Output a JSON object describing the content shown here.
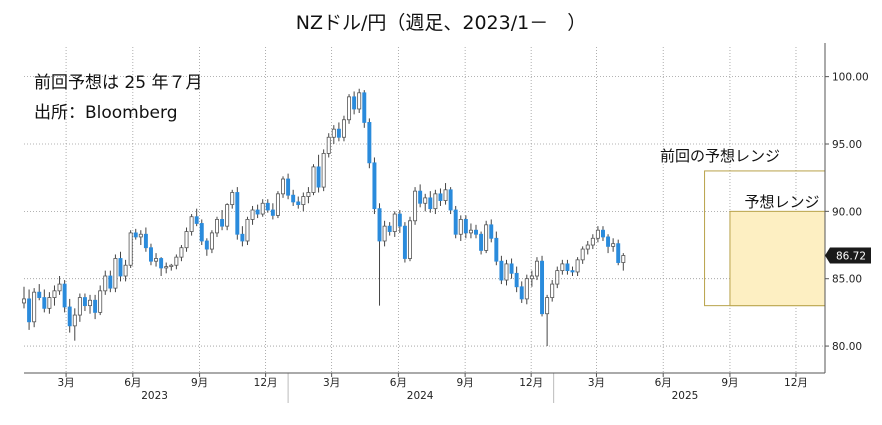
{
  "chart_data": {
    "type": "candlestick",
    "title": "NZドル/円（週足、2023/1－　）",
    "annotations": {
      "note_forecast": "前回予想は 25 年７月",
      "note_source": "出所：Bloomberg"
    },
    "y_ticks": [
      "80.00",
      "85.00",
      "90.00",
      "95.00",
      "100.00"
    ],
    "ylim": [
      78.0,
      102.2
    ],
    "grid": true,
    "x_ticks": [
      {
        "label": "3月",
        "date": "2023-03-01"
      },
      {
        "label": "6月",
        "date": "2023-06-01"
      },
      {
        "label": "9月",
        "date": "2023-09-01"
      },
      {
        "label": "12月",
        "date": "2023-12-01"
      },
      {
        "label": "3月",
        "date": "2024-03-01"
      },
      {
        "label": "6月",
        "date": "2024-06-01"
      },
      {
        "label": "9月",
        "date": "2024-09-01"
      },
      {
        "label": "12月",
        "date": "2024-12-01"
      },
      {
        "label": "3月",
        "date": "2025-03-01"
      },
      {
        "label": "6月",
        "date": "2025-06-01"
      },
      {
        "label": "9月",
        "date": "2025-09-01"
      },
      {
        "label": "12月",
        "date": "2025-12-01"
      }
    ],
    "year_labels": [
      {
        "label": "2023",
        "date": "2023-07-01"
      },
      {
        "label": "2024",
        "date": "2024-07-01"
      },
      {
        "label": "2025",
        "date": "2025-07-01"
      }
    ],
    "xlim": [
      "2023-01-02",
      "2026-01-10"
    ],
    "last_price": "86.72",
    "ranges": [
      {
        "label": "前回の予想レンジ",
        "start": "2025-07-28",
        "end": "2026-01-10",
        "low": 83.0,
        "high": 93.0,
        "fill": "#ffffff",
        "stroke": "#b8a24a"
      },
      {
        "label": "予想レンジ",
        "start": "2025-09-01",
        "end": "2026-01-10",
        "low": 83.0,
        "high": 90.0,
        "fill": "#fdefc2",
        "stroke": "#b8a24a"
      }
    ],
    "colors": {
      "up": "#ffffff",
      "down": "#2a8bdc",
      "wick": "#444444",
      "grid": "#9a9a9a",
      "badge": "#1a1a1a"
    },
    "ohlc_start": "2023-01-02",
    "ohlc_interval_days": 7,
    "ohlc": [
      [
        83.2,
        84.4,
        82.8,
        83.5
      ],
      [
        83.5,
        84.2,
        81.2,
        81.8
      ],
      [
        81.8,
        84.3,
        81.4,
        84.0
      ],
      [
        84.0,
        84.6,
        83.4,
        83.6
      ],
      [
        83.6,
        84.2,
        82.5,
        82.8
      ],
      [
        82.8,
        84.0,
        82.4,
        83.6
      ],
      [
        83.6,
        84.5,
        83.0,
        84.1
      ],
      [
        84.1,
        85.2,
        83.8,
        84.6
      ],
      [
        84.6,
        84.9,
        82.5,
        82.9
      ],
      [
        82.9,
        83.5,
        81.0,
        81.5
      ],
      [
        81.5,
        82.8,
        80.4,
        82.3
      ],
      [
        82.3,
        83.9,
        81.8,
        83.6
      ],
      [
        83.6,
        83.9,
        82.6,
        83.0
      ],
      [
        83.0,
        83.8,
        82.4,
        83.4
      ],
      [
        83.4,
        83.8,
        82.0,
        82.5
      ],
      [
        82.5,
        84.5,
        82.3,
        84.1
      ],
      [
        84.1,
        85.6,
        83.8,
        85.2
      ],
      [
        85.2,
        85.6,
        84.0,
        84.3
      ],
      [
        84.3,
        86.8,
        84.0,
        86.5
      ],
      [
        86.5,
        87.0,
        84.8,
        85.2
      ],
      [
        85.2,
        86.4,
        84.8,
        86.0
      ],
      [
        86.0,
        88.6,
        85.8,
        88.4
      ],
      [
        88.4,
        88.7,
        87.9,
        88.1
      ],
      [
        88.1,
        88.6,
        87.5,
        88.3
      ],
      [
        88.3,
        88.8,
        87.0,
        87.3
      ],
      [
        87.3,
        87.6,
        86.0,
        86.3
      ],
      [
        86.3,
        86.9,
        85.9,
        86.5
      ],
      [
        86.5,
        86.6,
        85.2,
        85.8
      ],
      [
        85.8,
        86.2,
        85.4,
        85.9
      ],
      [
        85.9,
        86.1,
        85.6,
        86.0
      ],
      [
        86.0,
        86.8,
        85.7,
        86.6
      ],
      [
        86.6,
        87.5,
        86.3,
        87.3
      ],
      [
        87.3,
        88.8,
        87.0,
        88.5
      ],
      [
        88.5,
        89.8,
        88.2,
        89.6
      ],
      [
        89.6,
        90.2,
        88.9,
        89.1
      ],
      [
        89.1,
        89.4,
        87.5,
        87.8
      ],
      [
        87.8,
        88.0,
        86.7,
        87.2
      ],
      [
        87.2,
        88.6,
        86.9,
        88.4
      ],
      [
        88.4,
        89.6,
        88.1,
        89.4
      ],
      [
        89.4,
        90.1,
        88.6,
        88.9
      ],
      [
        88.9,
        90.6,
        88.6,
        90.5
      ],
      [
        90.5,
        91.6,
        90.2,
        91.4
      ],
      [
        91.4,
        91.8,
        87.9,
        88.3
      ],
      [
        88.3,
        88.9,
        87.4,
        87.8
      ],
      [
        87.8,
        89.6,
        87.5,
        89.4
      ],
      [
        89.4,
        90.4,
        89.0,
        90.1
      ],
      [
        90.1,
        90.5,
        89.5,
        89.8
      ],
      [
        89.8,
        90.9,
        89.6,
        90.6
      ],
      [
        90.6,
        90.9,
        89.9,
        90.1
      ],
      [
        90.1,
        90.6,
        89.4,
        89.7
      ],
      [
        89.7,
        91.5,
        89.5,
        91.3
      ],
      [
        91.3,
        92.6,
        91.0,
        92.4
      ],
      [
        92.4,
        92.8,
        90.9,
        91.2
      ],
      [
        91.2,
        91.6,
        90.4,
        90.7
      ],
      [
        90.7,
        91.1,
        90.2,
        90.5
      ],
      [
        90.5,
        91.4,
        90.0,
        91.1
      ],
      [
        91.1,
        91.8,
        90.6,
        91.4
      ],
      [
        91.4,
        93.5,
        91.2,
        93.3
      ],
      [
        93.3,
        94.2,
        91.4,
        91.8
      ],
      [
        91.8,
        94.6,
        91.5,
        94.3
      ],
      [
        94.3,
        95.8,
        94.0,
        95.5
      ],
      [
        95.5,
        96.4,
        95.0,
        96.1
      ],
      [
        96.1,
        96.6,
        95.2,
        95.5
      ],
      [
        95.5,
        97.1,
        95.2,
        96.8
      ],
      [
        96.8,
        98.7,
        96.5,
        98.5
      ],
      [
        98.5,
        98.9,
        97.2,
        97.6
      ],
      [
        97.6,
        99.1,
        97.3,
        98.8
      ],
      [
        98.8,
        99.0,
        96.2,
        96.6
      ],
      [
        96.6,
        96.9,
        93.2,
        93.6
      ],
      [
        93.6,
        94.0,
        89.8,
        90.2
      ],
      [
        90.2,
        90.6,
        83.0,
        87.8
      ],
      [
        87.8,
        89.3,
        87.4,
        88.9
      ],
      [
        88.9,
        89.2,
        88.2,
        88.5
      ],
      [
        88.5,
        90.0,
        88.1,
        89.8
      ],
      [
        89.8,
        90.1,
        88.4,
        88.9
      ],
      [
        88.9,
        89.2,
        86.2,
        86.5
      ],
      [
        86.5,
        89.6,
        86.3,
        89.3
      ],
      [
        89.3,
        91.8,
        89.0,
        91.5
      ],
      [
        91.5,
        92.0,
        90.3,
        90.6
      ],
      [
        90.6,
        91.3,
        90.0,
        91.0
      ],
      [
        91.0,
        91.5,
        89.9,
        90.2
      ],
      [
        90.2,
        91.6,
        89.8,
        91.3
      ],
      [
        91.3,
        91.7,
        90.4,
        90.8
      ],
      [
        90.8,
        92.1,
        90.5,
        91.6
      ],
      [
        91.6,
        91.8,
        89.8,
        90.1
      ],
      [
        90.1,
        90.4,
        88.0,
        88.3
      ],
      [
        88.3,
        89.7,
        87.8,
        89.4
      ],
      [
        89.4,
        89.7,
        88.0,
        88.4
      ],
      [
        88.4,
        89.1,
        88.0,
        88.6
      ],
      [
        88.6,
        89.0,
        88.0,
        88.3
      ],
      [
        88.3,
        88.5,
        86.8,
        87.1
      ],
      [
        87.1,
        89.3,
        86.9,
        89.0
      ],
      [
        89.0,
        89.4,
        87.7,
        88.0
      ],
      [
        88.0,
        88.5,
        86.0,
        86.3
      ],
      [
        86.3,
        86.7,
        84.6,
        84.9
      ],
      [
        84.9,
        86.4,
        84.5,
        86.1
      ],
      [
        86.1,
        86.5,
        85.0,
        85.4
      ],
      [
        85.4,
        85.9,
        84.0,
        84.4
      ],
      [
        84.4,
        84.8,
        83.2,
        83.5
      ],
      [
        83.5,
        85.3,
        83.1,
        85.0
      ],
      [
        85.0,
        85.6,
        84.4,
        85.2
      ],
      [
        85.2,
        86.6,
        84.9,
        86.3
      ],
      [
        86.3,
        86.7,
        82.2,
        82.4
      ],
      [
        82.4,
        83.8,
        80.0,
        83.6
      ],
      [
        83.6,
        84.9,
        83.3,
        84.6
      ],
      [
        84.6,
        85.9,
        84.3,
        85.6
      ],
      [
        85.6,
        86.4,
        85.3,
        86.1
      ],
      [
        86.1,
        86.4,
        85.3,
        85.6
      ],
      [
        85.6,
        85.9,
        85.2,
        85.5
      ],
      [
        85.5,
        86.6,
        85.2,
        86.4
      ],
      [
        86.4,
        87.4,
        86.1,
        87.2
      ],
      [
        87.2,
        87.8,
        86.8,
        87.5
      ],
      [
        87.5,
        88.3,
        87.2,
        88.0
      ],
      [
        88.0,
        88.9,
        87.7,
        88.6
      ],
      [
        88.6,
        88.9,
        87.8,
        88.1
      ],
      [
        88.1,
        88.3,
        86.9,
        87.4
      ],
      [
        87.4,
        88.0,
        87.0,
        87.6
      ],
      [
        87.6,
        87.9,
        86.0,
        86.2
      ],
      [
        86.2,
        86.9,
        85.6,
        86.72
      ]
    ]
  }
}
